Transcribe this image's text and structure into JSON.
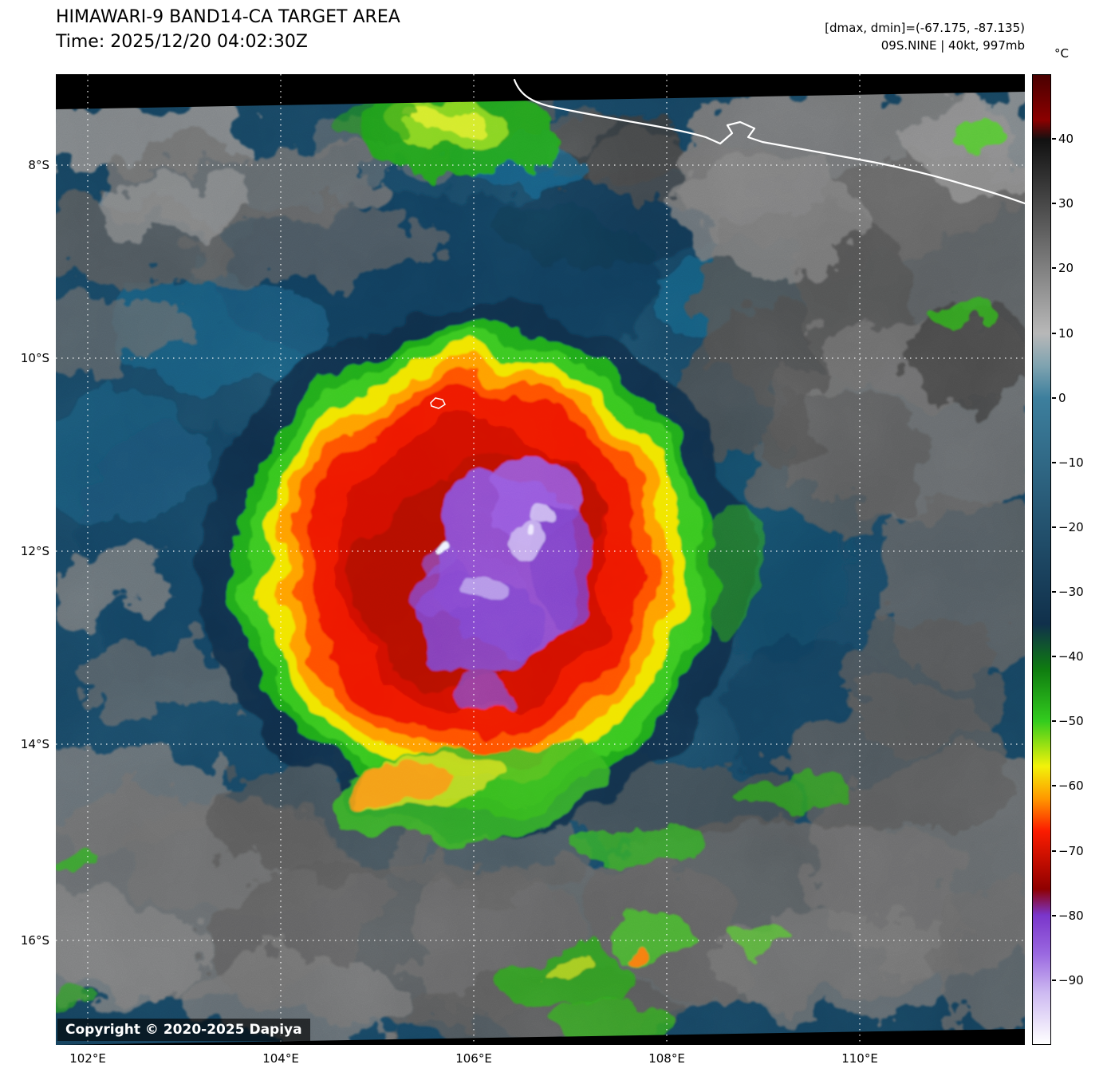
{
  "header": {
    "title": "HIMAWARI-9 BAND14-CA TARGET AREA",
    "time": "Time: 2025/12/20 04:02:30Z",
    "readout": "[dmax, dmin]=(-67.175, -87.135)",
    "storm": "09S.NINE | 40kt, 997mb"
  },
  "colorbar": {
    "unit": "°C",
    "tick_labels": [
      "40",
      "30",
      "20",
      "10",
      "0",
      "−10",
      "−20",
      "−30",
      "−40",
      "−50",
      "−60",
      "−70",
      "−80",
      "−90"
    ],
    "domain_max": 50,
    "domain_min": -100,
    "stops": [
      {
        "t": 50,
        "c": "#4a0000"
      },
      {
        "t": 43,
        "c": "#8b0000"
      },
      {
        "t": 40,
        "c": "#111111"
      },
      {
        "t": 10,
        "c": "#b8b8b8"
      },
      {
        "t": 5,
        "c": "#7fa3b0"
      },
      {
        "t": 0,
        "c": "#3d7f9d"
      },
      {
        "t": -35,
        "c": "#10304b"
      },
      {
        "t": -42,
        "c": "#0f7c10"
      },
      {
        "t": -50,
        "c": "#33cc1e"
      },
      {
        "t": -57,
        "c": "#f2f20a"
      },
      {
        "t": -62,
        "c": "#ff9800"
      },
      {
        "t": -67,
        "c": "#fb1c00"
      },
      {
        "t": -76,
        "c": "#8f0000"
      },
      {
        "t": -80,
        "c": "#7a35ca"
      },
      {
        "t": -86,
        "c": "#9a68e0"
      },
      {
        "t": -92,
        "c": "#cdb9f1"
      },
      {
        "t": -100,
        "c": "#ffffff"
      }
    ]
  },
  "axes": {
    "lat_labels": [
      "8°S",
      "10°S",
      "12°S",
      "14°S",
      "16°S"
    ],
    "lon_labels": [
      "102°E",
      "104°E",
      "106°E",
      "108°E",
      "110°E"
    ]
  },
  "map": {
    "copyright": "Copyright © 2020-2025 Dapiya"
  },
  "chart_data": {
    "type": "heatmap",
    "product": "HIMAWARI-9 BAND14-CA TARGET AREA",
    "time_utc": "2025/12/20 04:02:30Z",
    "storm": {
      "id": "09S.NINE",
      "intensity_kt": 40,
      "pressure_mb": 997
    },
    "brightness_temp_c": {
      "dmax": -67.175,
      "dmin": -87.135
    },
    "colorbar_unit": "°C",
    "colorbar_ticks_c": [
      40,
      30,
      20,
      10,
      0,
      -10,
      -20,
      -30,
      -40,
      -50,
      -60,
      -70,
      -80,
      -90
    ],
    "lat_ticks": [
      "8°S",
      "10°S",
      "12°S",
      "14°S",
      "16°S"
    ],
    "lon_ticks": [
      "102°E",
      "104°E",
      "106°E",
      "108°E",
      "110°E"
    ]
  }
}
